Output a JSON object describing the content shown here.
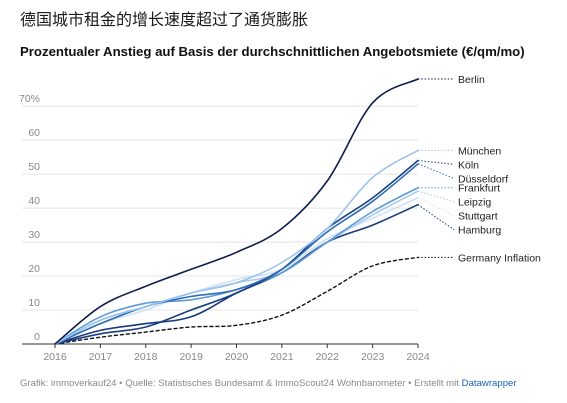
{
  "headline": "德国城市租金的增长速度超过了通货膨胀",
  "chart_data": {
    "type": "line",
    "title": "Prozentualer Anstieg auf Basis der durchschnittlichen Angebotsmiete (€/qm/mo)",
    "xlabel": "",
    "ylabel": "",
    "x": [
      2016,
      2017,
      2018,
      2019,
      2020,
      2021,
      2022,
      2023,
      2024
    ],
    "x_tick_labels": [
      "2016",
      "2017",
      "2018",
      "2019",
      "2020",
      "2021",
      "2022",
      "2023",
      "2024"
    ],
    "xlim": [
      2016,
      2024
    ],
    "ylim": [
      0,
      78
    ],
    "y_ticks": [
      0,
      10,
      20,
      30,
      40,
      50,
      60,
      70
    ],
    "y_tick_labels": [
      "0",
      "10",
      "20",
      "30",
      "40",
      "50",
      "60",
      "70%"
    ],
    "grid": true,
    "legend_placement": "direct labels at right end of lines",
    "series": [
      {
        "name": "Berlin",
        "color": "#0f1d4d",
        "dash": false,
        "values": [
          0,
          11,
          17,
          22,
          27,
          34,
          48,
          71,
          78
        ]
      },
      {
        "name": "München",
        "color": "#9dc3ec",
        "dash": false,
        "values": [
          0,
          7,
          11,
          15,
          18,
          24,
          34,
          49,
          57
        ]
      },
      {
        "name": "Düsseldorf",
        "color": "#2e6db4",
        "dash": false,
        "values": [
          0,
          6,
          11,
          14,
          16,
          22,
          33,
          42,
          53
        ]
      },
      {
        "name": "Köln",
        "color": "#1c3f82",
        "dash": false,
        "values": [
          0,
          3,
          5,
          10,
          15,
          22,
          34,
          43,
          54
        ]
      },
      {
        "name": "Frankfurt",
        "color": "#5b9bd8",
        "dash": false,
        "values": [
          0,
          8,
          12,
          13,
          16,
          21,
          30,
          39,
          46
        ]
      },
      {
        "name": "Leipzig",
        "color": "#a9cbee",
        "dash": false,
        "values": [
          0,
          7,
          11,
          15,
          18,
          21,
          30,
          38,
          45
        ]
      },
      {
        "name": "Stuttgart",
        "color": "#cfe2f6",
        "dash": false,
        "values": [
          0,
          6,
          10,
          15,
          19,
          22,
          31,
          37,
          43
        ]
      },
      {
        "name": "Hamburg",
        "color": "#163a7a",
        "dash": false,
        "values": [
          0,
          4,
          6,
          8,
          15,
          21,
          30,
          35,
          41
        ]
      },
      {
        "name": "Germany Inflation",
        "color": "#111111",
        "dash": true,
        "values": [
          0,
          2,
          3.5,
          5,
          5.5,
          8.5,
          15.5,
          23,
          25.5
        ]
      }
    ]
  },
  "footer": {
    "prefix": "Grafik: immoverkauf24 • Quelle: Statistisches Bundesamt & ImmoScout24 Wohnbarometer • Erstellt mit ",
    "link_label": "Datawrapper"
  }
}
